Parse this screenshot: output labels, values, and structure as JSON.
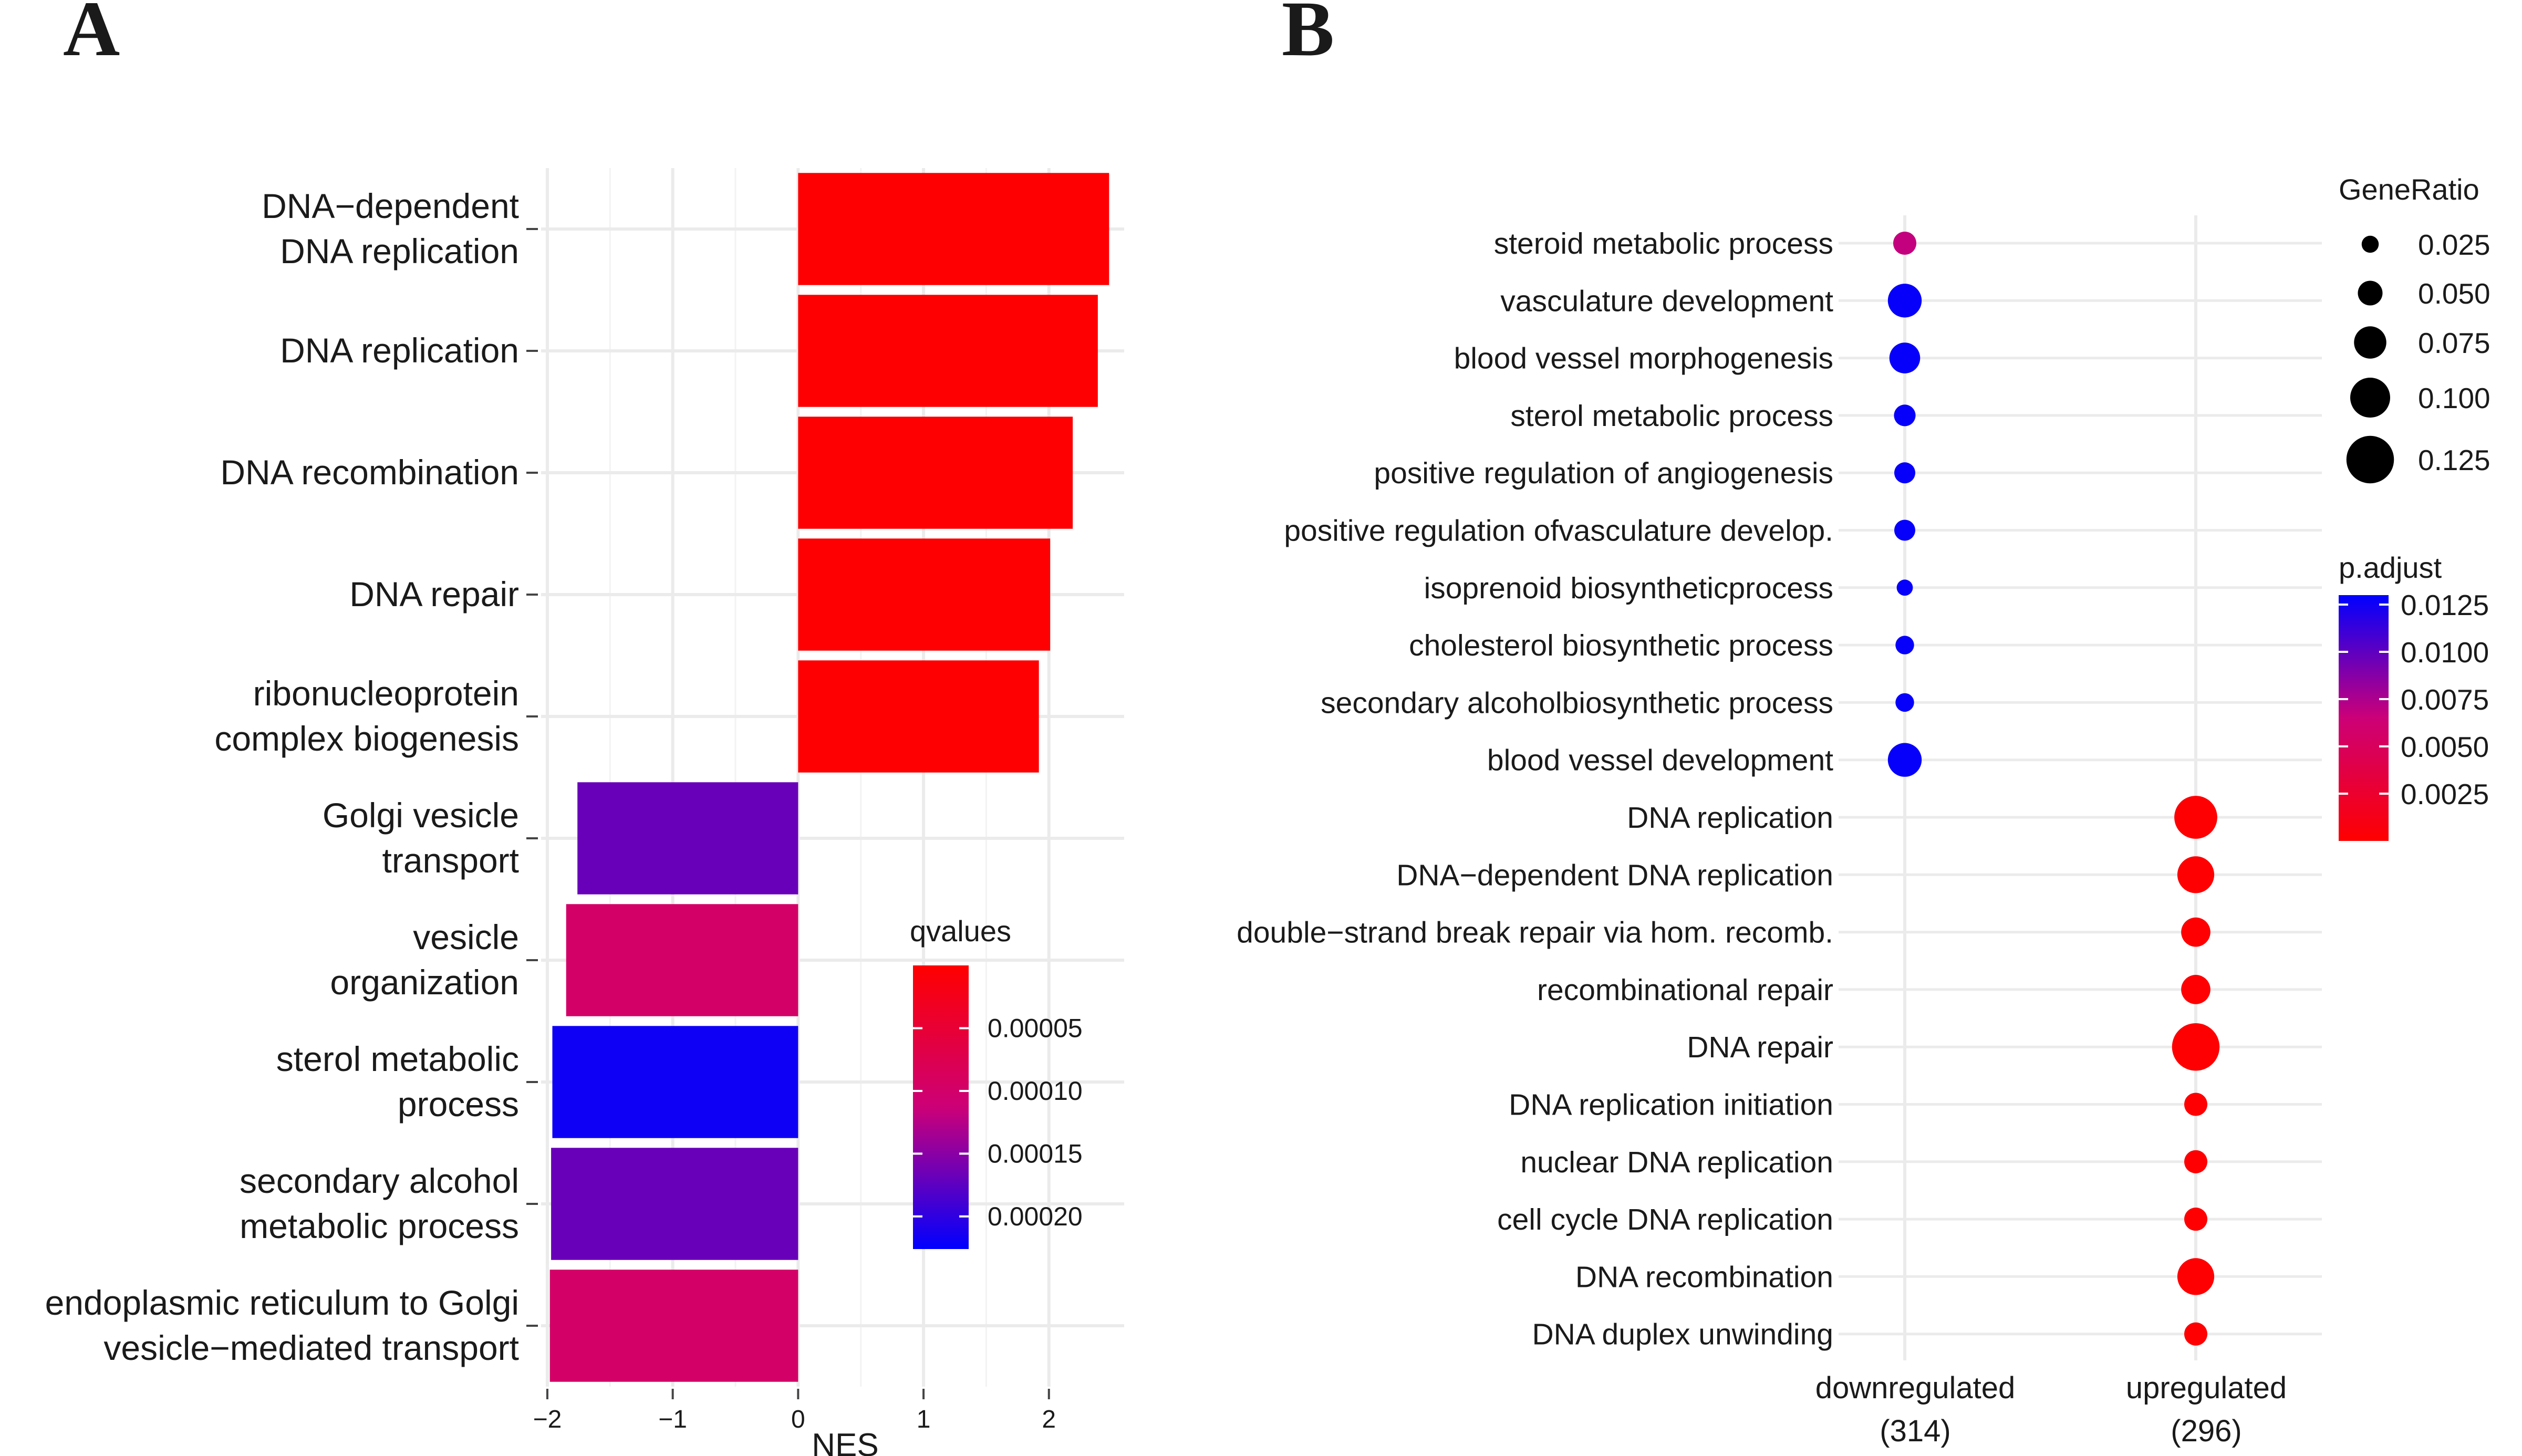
{
  "panel_a_letter": "A",
  "panel_b_letter": "B",
  "chart_data": [
    {
      "type": "bar",
      "orientation": "horizontal",
      "panel": "A",
      "categories": [
        [
          "DNA−dependent",
          "DNA replication"
        ],
        [
          "DNA replication"
        ],
        [
          "DNA recombination"
        ],
        [
          "DNA repair"
        ],
        [
          "ribonucleoprotein",
          "complex biogenesis"
        ],
        [
          "Golgi vesicle",
          "transport"
        ],
        [
          "vesicle",
          "organization"
        ],
        [
          "sterol metabolic",
          "process"
        ],
        [
          "secondary alcohol",
          "metabolic process"
        ],
        [
          "endoplasmic reticulum to Golgi",
          "vesicle−mediated transport"
        ]
      ],
      "values": [
        2.48,
        2.39,
        2.19,
        2.01,
        1.92,
        -1.76,
        -1.85,
        -1.96,
        -1.97,
        -1.98
      ],
      "qvalues": [
        2e-06,
        2e-06,
        2e-06,
        2e-06,
        2e-06,
        0.000168,
        9.8e-05,
        0.000218,
        0.000168,
        9.8e-05
      ],
      "xlabel": "NES",
      "xlim": [
        -2.05,
        2.6
      ],
      "xticks": [
        -2,
        -1,
        0,
        1,
        2
      ],
      "xtick_labels": [
        "−2",
        "−1",
        "0",
        "1",
        "2"
      ],
      "legend": {
        "title": "qvalues",
        "placement": "inside-bottom-right",
        "domain": [
          0.0,
          0.000226
        ],
        "low_color": "#ff0000",
        "mid_color": "#cc0077",
        "high_color": "#0000ff",
        "ticks": [
          5e-05,
          0.0001,
          0.00015,
          0.0002
        ],
        "tick_labels": [
          "0.00005",
          "0.00010",
          "0.00015",
          "0.00020"
        ]
      },
      "grid": true
    },
    {
      "type": "scatter",
      "panel": "B",
      "categories": [
        "downregulated\n(314)",
        "upregulated\n(296)"
      ],
      "category_labels": [
        [
          "downregulated",
          "(314)"
        ],
        [
          "upregulated",
          "(296)"
        ]
      ],
      "terms": [
        "steroid metabolic process",
        "vasculature development",
        "blood vessel morphogenesis",
        "sterol metabolic process",
        "positive regulation of angiogenesis",
        "positive regulation ofvasculature develop.",
        "isoprenoid biosyntheticprocess",
        "cholesterol biosynthetic process",
        "secondary alcoholbiosynthetic process",
        "blood vessel development",
        "DNA replication",
        "DNA−dependent DNA replication",
        "double−strand break repair via hom. recomb.",
        "recombinational repair",
        "DNA repair",
        "DNA replication initiation",
        "nuclear DNA replication",
        "cell cycle DNA replication",
        "DNA recombination",
        "DNA duplex unwinding"
      ],
      "points": [
        {
          "term": "steroid metabolic process",
          "cluster": "downregulated\n(314)",
          "gene_ratio": 0.045,
          "p_adjust": 0.0068
        },
        {
          "term": "vasculature development",
          "cluster": "downregulated\n(314)",
          "gene_ratio": 0.08,
          "p_adjust": 0.0128
        },
        {
          "term": "blood vessel morphogenesis",
          "cluster": "downregulated\n(314)",
          "gene_ratio": 0.07,
          "p_adjust": 0.0128
        },
        {
          "term": "sterol metabolic process",
          "cluster": "downregulated\n(314)",
          "gene_ratio": 0.04,
          "p_adjust": 0.0128
        },
        {
          "term": "positive regulation of angiogenesis",
          "cluster": "downregulated\n(314)",
          "gene_ratio": 0.038,
          "p_adjust": 0.0128
        },
        {
          "term": "positive regulation ofvasculature develop.",
          "cluster": "downregulated\n(314)",
          "gene_ratio": 0.038,
          "p_adjust": 0.0128
        },
        {
          "term": "isoprenoid biosyntheticprocess",
          "cluster": "downregulated\n(314)",
          "gene_ratio": 0.022,
          "p_adjust": 0.0128
        },
        {
          "term": "cholesterol biosynthetic process",
          "cluster": "downregulated\n(314)",
          "gene_ratio": 0.03,
          "p_adjust": 0.0128
        },
        {
          "term": "secondary alcoholbiosynthetic process",
          "cluster": "downregulated\n(314)",
          "gene_ratio": 0.03,
          "p_adjust": 0.0128
        },
        {
          "term": "blood vessel development",
          "cluster": "downregulated\n(314)",
          "gene_ratio": 0.08,
          "p_adjust": 0.0128
        },
        {
          "term": "DNA replication",
          "cluster": "upregulated\n(296)",
          "gene_ratio": 0.11,
          "p_adjust": 0.0001
        },
        {
          "term": "DNA−dependent DNA replication",
          "cluster": "upregulated\n(296)",
          "gene_ratio": 0.09,
          "p_adjust": 0.0001
        },
        {
          "term": "double−strand break repair via hom. recomb.",
          "cluster": "upregulated\n(296)",
          "gene_ratio": 0.065,
          "p_adjust": 0.0001
        },
        {
          "term": "recombinational repair",
          "cluster": "upregulated\n(296)",
          "gene_ratio": 0.065,
          "p_adjust": 0.0001
        },
        {
          "term": "DNA repair",
          "cluster": "upregulated\n(296)",
          "gene_ratio": 0.125,
          "p_adjust": 0.0001
        },
        {
          "term": "DNA replication initiation",
          "cluster": "upregulated\n(296)",
          "gene_ratio": 0.045,
          "p_adjust": 0.0001
        },
        {
          "term": "nuclear DNA replication",
          "cluster": "upregulated\n(296)",
          "gene_ratio": 0.045,
          "p_adjust": 0.0001
        },
        {
          "term": "cell cycle DNA replication",
          "cluster": "upregulated\n(296)",
          "gene_ratio": 0.045,
          "p_adjust": 0.0001
        },
        {
          "term": "DNA recombination",
          "cluster": "upregulated\n(296)",
          "gene_ratio": 0.09,
          "p_adjust": 0.0001
        },
        {
          "term": "DNA duplex unwinding",
          "cluster": "upregulated\n(296)",
          "gene_ratio": 0.045,
          "p_adjust": 0.0001
        }
      ],
      "size_legend": {
        "title": "GeneRatio",
        "values": [
          0.025,
          0.05,
          0.075,
          0.1,
          0.125
        ],
        "labels": [
          "0.025",
          "0.050",
          "0.075",
          "0.100",
          "0.125"
        ],
        "color": "#000000"
      },
      "color_legend": {
        "title": "p.adjust",
        "domain": [
          0.0,
          0.013
        ],
        "low_color": "#ff0000",
        "mid_color": "#cc0077",
        "high_color": "#0000ff",
        "ticks": [
          0.0125,
          0.01,
          0.0075,
          0.005,
          0.0025
        ],
        "tick_labels": [
          "0.0125",
          "0.0100",
          "0.0075",
          "0.0050",
          "0.0025"
        ]
      },
      "grid": true,
      "legend_placement": "right"
    }
  ]
}
